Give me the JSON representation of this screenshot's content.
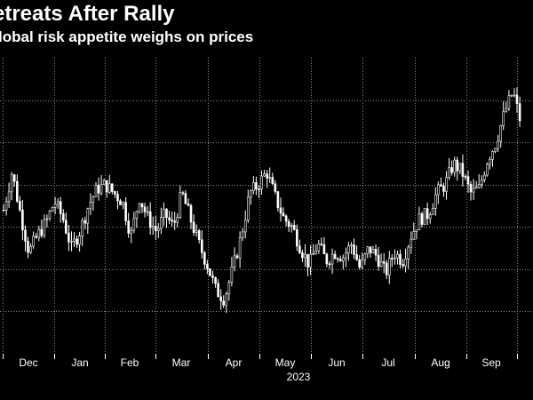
{
  "title": "etreats After Rally",
  "subtitle": "lobal risk appetite weighs on prices",
  "colors": {
    "background": "#000000",
    "foreground": "#ffffff",
    "grid": "#8a8a8a"
  },
  "chart_data": {
    "type": "candlestick",
    "title": "etreats After Rally",
    "subtitle": "lobal risk appetite weighs on prices",
    "xlabel": "2023",
    "ylabel": "",
    "x_tick_labels": [
      "Dec",
      "Jan",
      "Feb",
      "Mar",
      "Apr",
      "May",
      "Jun",
      "Jul",
      "Aug",
      "Sep"
    ],
    "year_label": "2023",
    "ylim": [
      0,
      7
    ],
    "y_gridlines": [
      1,
      2,
      3,
      4,
      5,
      6
    ],
    "grid": true,
    "legend": "none",
    "series": [
      {
        "name": "price",
        "days": [
          0,
          5,
          10,
          15,
          20,
          25,
          30,
          35,
          40,
          45,
          50,
          55,
          60,
          65,
          70,
          75,
          80,
          85,
          90,
          95,
          100,
          105,
          110,
          115,
          120,
          125,
          130,
          135,
          140,
          145,
          150,
          155,
          160,
          165,
          170,
          175,
          180,
          185,
          190,
          195,
          200,
          205,
          210,
          215,
          220,
          225,
          230,
          235,
          240,
          245,
          250,
          255,
          260,
          265,
          270,
          275,
          280,
          285,
          290,
          295,
          300,
          305
        ],
        "values": [
          3.4,
          4.3,
          3.3,
          2.4,
          2.8,
          3.1,
          3.6,
          3.2,
          2.5,
          2.9,
          3.5,
          3.9,
          4.0,
          3.8,
          3.6,
          2.8,
          3.7,
          3.2,
          2.9,
          3.3,
          3.0,
          3.8,
          3.2,
          2.6,
          2.1,
          1.5,
          1.3,
          2.0,
          2.8,
          3.8,
          4.0,
          4.3,
          3.7,
          3.2,
          3.0,
          2.5,
          2.1,
          2.6,
          2.2,
          2.4,
          2.3,
          2.6,
          2.0,
          2.5,
          2.3,
          1.9,
          2.4,
          2.2,
          2.8,
          3.2,
          3.3,
          3.8,
          4.0,
          4.5,
          4.3,
          3.8,
          3.9,
          4.6,
          5.0,
          5.7,
          6.2,
          5.4
        ]
      }
    ]
  }
}
